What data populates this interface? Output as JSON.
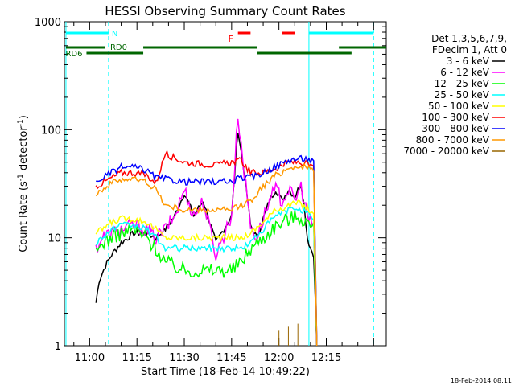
{
  "chart_data": {
    "type": "line",
    "title": "HESSI Observing Summary Count Rates",
    "xlabel": "Start Time (18-Feb-14 10:49:22)",
    "ylabel_main": "Count Rate (s",
    "ylabel_sup1": "-1",
    "ylabel_mid": " detector",
    "ylabel_sup2": "-1",
    "ylabel_end": ")",
    "yscale": "log",
    "ylim": [
      1,
      1000
    ],
    "xlim_minutes": [
      -8,
      94
    ],
    "xtick_labels": [
      {
        "label": "11:00",
        "t": 0
      },
      {
        "label": "11:15",
        "t": 15
      },
      {
        "label": "11:30",
        "t": 30
      },
      {
        "label": "11:45",
        "t": 45
      },
      {
        "label": "12:00",
        "t": 60
      },
      {
        "label": "12:15",
        "t": 75
      }
    ],
    "ytick_labels": [
      {
        "label": "1",
        "v": 1
      },
      {
        "label": "10",
        "v": 10
      },
      {
        "label": "100",
        "v": 100
      },
      {
        "label": "1000",
        "v": 1000
      }
    ],
    "legend_title": [
      "Det 1,3,5,6,7,9,",
      "FDecim 1, Att 0"
    ],
    "legend_position": "right",
    "series": [
      {
        "name": "3 - 6 keV",
        "color": "#000000",
        "x": [
          2,
          3,
          5,
          7,
          10,
          14,
          18,
          21,
          24,
          27,
          30,
          33,
          36,
          40,
          45,
          47,
          49,
          51,
          53,
          55,
          57,
          59,
          61,
          63,
          65,
          67,
          68,
          69,
          70,
          71,
          72
        ],
        "values": [
          2.5,
          4,
          5.5,
          7,
          9,
          11,
          11,
          10,
          12,
          16,
          26,
          16,
          22,
          9,
          16,
          100,
          40,
          13,
          10,
          15,
          22,
          28,
          22,
          28,
          24,
          32,
          20,
          10,
          8,
          7,
          1
        ]
      },
      {
        "name": "6 - 12 keV",
        "color": "#ff00ff",
        "x": [
          2,
          4,
          7,
          10,
          14,
          18,
          21,
          24,
          27,
          30,
          33,
          36,
          40,
          45,
          47,
          49,
          51,
          53,
          55,
          57,
          59,
          61,
          63,
          65,
          67,
          69,
          70,
          71,
          72
        ],
        "values": [
          8,
          10,
          11,
          12,
          13,
          12,
          10,
          12,
          16,
          28,
          16,
          22,
          7,
          16,
          140,
          40,
          13,
          10,
          15,
          22,
          28,
          22,
          28,
          22,
          30,
          16,
          14,
          12,
          1
        ]
      },
      {
        "name": "12 - 25 keV",
        "color": "#00ff00",
        "x": [
          2,
          4,
          7,
          10,
          14,
          18,
          21,
          24,
          30,
          40,
          45,
          48,
          51,
          55,
          59,
          63,
          66,
          69,
          71,
          72
        ],
        "values": [
          7,
          9,
          10,
          11,
          12,
          10,
          8,
          6,
          5,
          5,
          5,
          6,
          8,
          10,
          13,
          15,
          16,
          14,
          12,
          1
        ]
      },
      {
        "name": "25 - 50 keV",
        "color": "#00ffff",
        "x": [
          2,
          4,
          7,
          10,
          14,
          18,
          21,
          24,
          30,
          40,
          45,
          48,
          51,
          55,
          59,
          63,
          66,
          69,
          71,
          72
        ],
        "values": [
          9,
          10,
          12,
          13,
          13,
          12,
          10,
          8,
          8,
          8,
          8,
          8,
          9,
          12,
          16,
          18,
          19,
          17,
          14,
          1
        ]
      },
      {
        "name": "50 - 100 keV",
        "color": "#ffff00",
        "x": [
          2,
          4,
          7,
          10,
          14,
          18,
          21,
          24,
          30,
          40,
          45,
          48,
          51,
          55,
          59,
          63,
          66,
          69,
          71,
          72
        ],
        "values": [
          11,
          12,
          14,
          15,
          15,
          14,
          12,
          10,
          10,
          10,
          10,
          10,
          11,
          14,
          18,
          20,
          21,
          19,
          16,
          1
        ]
      },
      {
        "name": "100 - 300 keV",
        "color": "#ff0000",
        "x": [
          2,
          4,
          7,
          10,
          14,
          18,
          21,
          24,
          30,
          40,
          45,
          48,
          51,
          55,
          59,
          63,
          66,
          69,
          71,
          72
        ],
        "values": [
          30,
          32,
          36,
          40,
          40,
          38,
          32,
          60,
          50,
          47,
          50,
          52,
          40,
          40,
          44,
          50,
          50,
          48,
          44,
          1
        ]
      },
      {
        "name": "300 - 800 keV",
        "color": "#0000ff",
        "x": [
          2,
          4,
          7,
          10,
          14,
          18,
          21,
          24,
          30,
          40,
          45,
          48,
          51,
          55,
          59,
          63,
          66,
          69,
          71,
          72
        ],
        "values": [
          32,
          36,
          40,
          45,
          45,
          42,
          36,
          35,
          33,
          33,
          33,
          36,
          36,
          40,
          46,
          52,
          54,
          54,
          50,
          1
        ]
      },
      {
        "name": "800 - 7000 keV",
        "color": "#ff9900",
        "x": [
          2,
          4,
          7,
          10,
          14,
          18,
          21,
          24,
          30,
          40,
          45,
          48,
          51,
          55,
          59,
          63,
          66,
          69,
          71,
          72
        ],
        "values": [
          26,
          28,
          32,
          35,
          35,
          33,
          28,
          20,
          18,
          18,
          18,
          20,
          22,
          30,
          38,
          44,
          46,
          45,
          40,
          1
        ]
      },
      {
        "name": "7000 - 20000 keV",
        "color": "#996600",
        "x": [
          60,
          63,
          66
        ],
        "values": [
          1.4,
          1.5,
          1.6
        ]
      }
    ],
    "cyan_vlines": [
      -7.5,
      6,
      69.5,
      90
    ],
    "dashed_vlines": [
      6,
      90
    ],
    "flags": [
      {
        "label": "N",
        "color": "#00ffff",
        "level": "high",
        "segments": [
          [
            -7.5,
            6
          ],
          [
            69.5,
            90
          ]
        ]
      },
      {
        "label": "F",
        "color": "#ff0000",
        "level": "high",
        "segments": [
          [
            47,
            51
          ],
          [
            61,
            65
          ]
        ]
      },
      {
        "label": "RD0",
        "color": "#006600",
        "level": "mid",
        "segments": [
          [
            -7.5,
            5
          ],
          [
            17,
            53
          ],
          [
            79,
            94
          ]
        ]
      },
      {
        "label": "RD6",
        "color": "#006600",
        "level": "low",
        "segments": [
          [
            -1,
            17
          ],
          [
            53,
            83
          ]
        ]
      }
    ],
    "date_stamp": "18-Feb-2014 08:11"
  }
}
